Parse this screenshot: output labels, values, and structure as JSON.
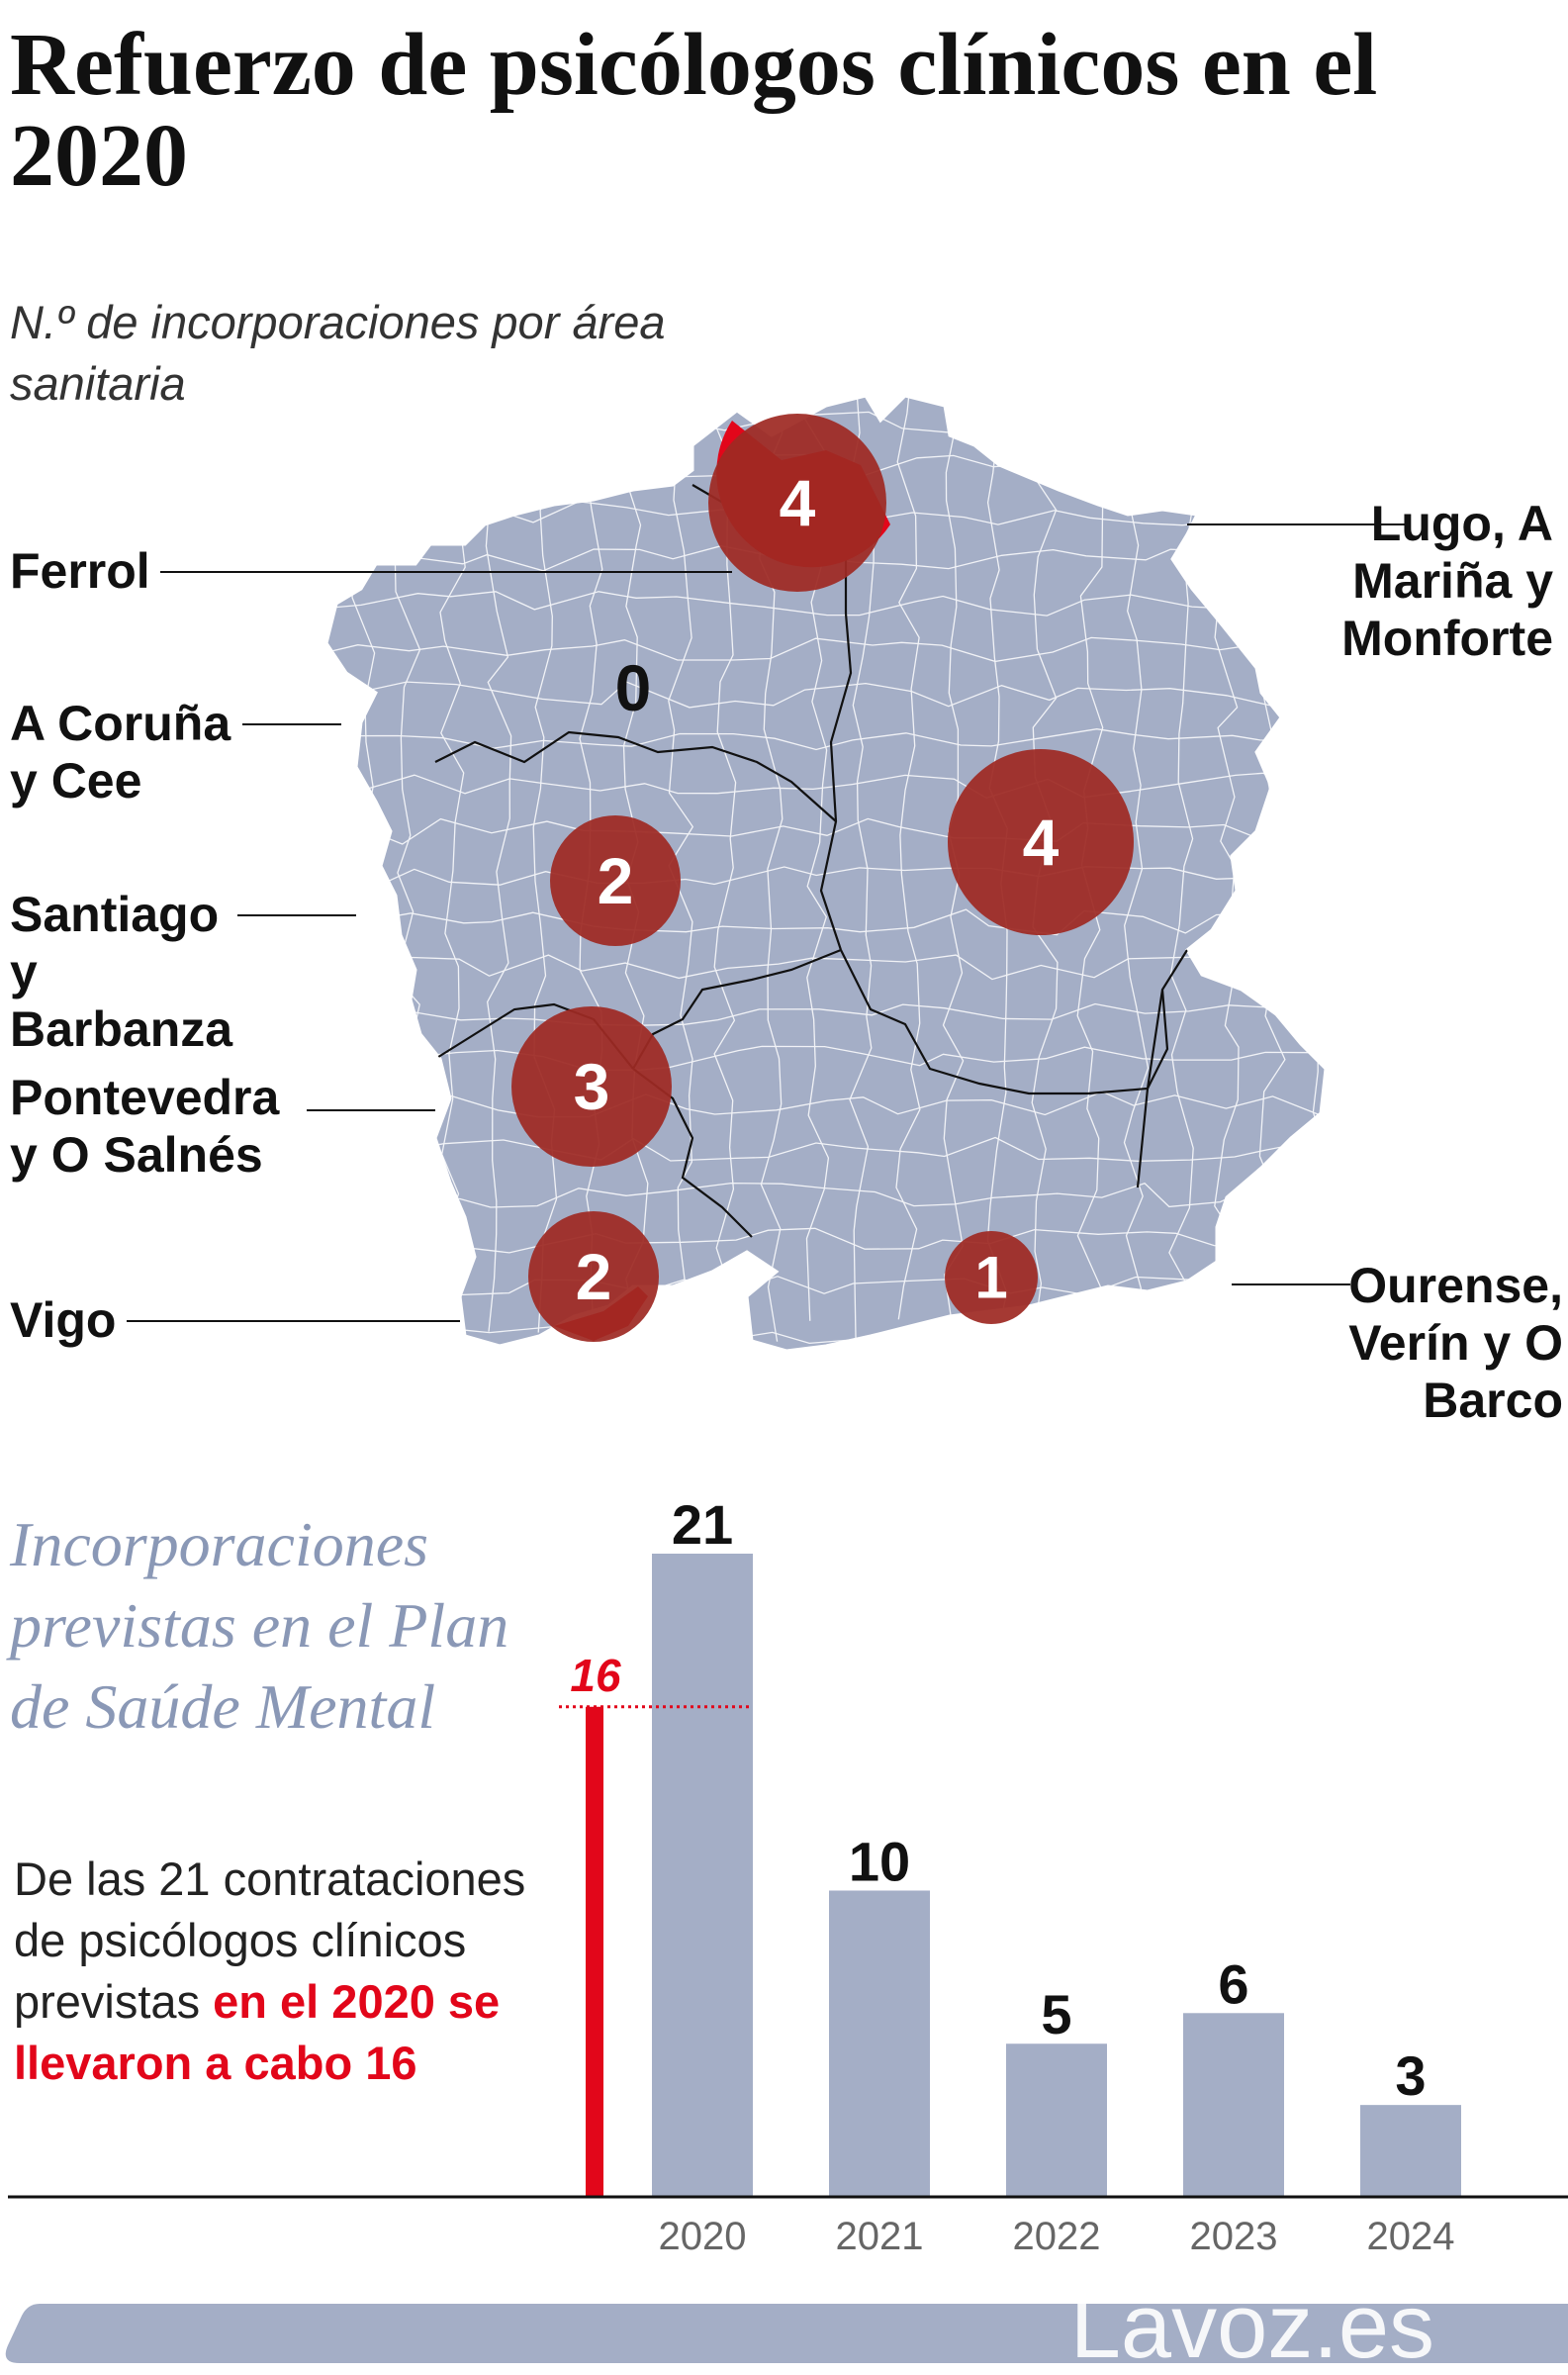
{
  "title": "Refuerzo de psicólogos clínicos en el 2020",
  "map": {
    "subtitle": "N.º de incorporaciones por área sanitaria",
    "areas": [
      {
        "name": "Ferrol",
        "value": "4"
      },
      {
        "name": "A Coruña y Cee",
        "value": "0"
      },
      {
        "name": "Santiago y Barbanza",
        "value": "2"
      },
      {
        "name": "Pontevedra y O Salnés",
        "value": "3"
      },
      {
        "name": "Vigo",
        "value": "2"
      },
      {
        "name": "Lugo, A Mariña y Monforte",
        "value": "4"
      },
      {
        "name": "Ourense, Verín y O Barco",
        "value": "1"
      }
    ],
    "colors": {
      "land": "#a4aec6",
      "border": "#ffffff",
      "circle": "#9e2a24",
      "highlight": "#e2061a"
    }
  },
  "chart_heading": "Incorporaciones previstas en el Plan de Saúde Mental",
  "chart_note": {
    "text": "De las 21 contrataciones de psicólogos clínicos previstas ",
    "highlight": "en el 2020 se llevaron a cabo 16"
  },
  "chart_data": {
    "type": "bar",
    "title": "Incorporaciones previstas en el Plan de Saúde Mental",
    "categories": [
      "2020",
      "2021",
      "2022",
      "2023",
      "2024"
    ],
    "values": [
      21,
      10,
      5,
      6,
      3
    ],
    "value_labels": [
      "21",
      "10",
      "5",
      "6",
      "3"
    ],
    "executed": {
      "category": "2020",
      "value": 16,
      "label": "16"
    },
    "ylim": [
      0,
      21
    ],
    "grid": false,
    "colors": {
      "bar": "#a4aec6",
      "executed": "#e2061a",
      "axis": "#111111",
      "tick": "#666666"
    }
  },
  "footer": {
    "brand": "Lavoz.es",
    "bar_color": "#a4aec6"
  }
}
